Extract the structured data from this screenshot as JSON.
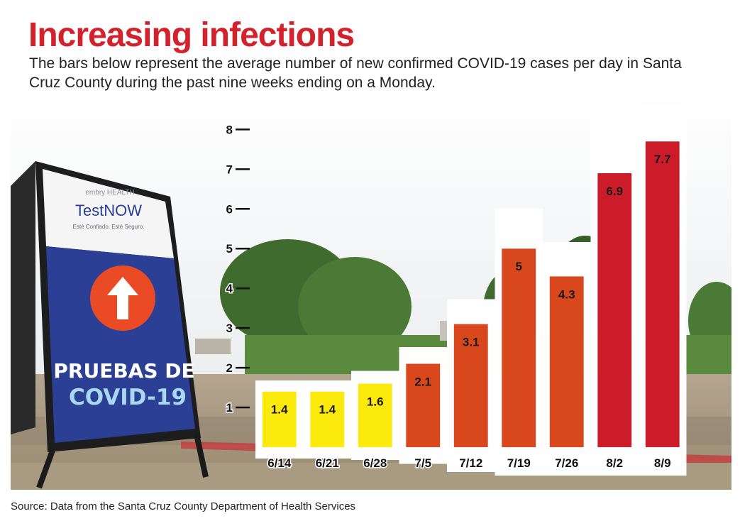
{
  "header": {
    "title": "Increasing infections",
    "subtitle": "The bars below represent the average number of new confirmed COVID-19 cases per day in Santa Cruz County during the past nine weeks ending on a Monday."
  },
  "photo": {
    "sign_brand_top": "embry HEALTH",
    "sign_brand": "TestNOW",
    "sign_tagline": "Esté Confiado. Esté Seguro.",
    "sign_line1": "PRUEBAS DE",
    "sign_line2": "COVID-19"
  },
  "chart_data": {
    "type": "bar",
    "title": "",
    "xlabel": "",
    "ylabel": "",
    "categories": [
      "6/14",
      "6/21",
      "6/28",
      "7/5",
      "7/12",
      "7/19",
      "7/26",
      "8/2",
      "8/9"
    ],
    "values": [
      1.4,
      1.4,
      1.6,
      2.1,
      3.1,
      5,
      4.3,
      6.9,
      7.7
    ],
    "value_labels": [
      "1.4",
      "1.4",
      "1.6",
      "2.1",
      "3.1",
      "5",
      "4.3",
      "6.9",
      "7.7"
    ],
    "bar_colors": [
      "#fdea07",
      "#fdea07",
      "#fdea07",
      "#d9471a",
      "#d9471a",
      "#d9471a",
      "#d9471a",
      "#cc1f2a",
      "#cc1f2a"
    ],
    "ylim": [
      0,
      8.4
    ],
    "yticks": [
      1,
      2,
      3,
      4,
      5,
      6,
      7,
      8
    ],
    "grid": false,
    "legend": "none"
  },
  "colors": {
    "title": "#d4222d",
    "axis": "#111111"
  },
  "footer": {
    "source": "Source: Data from the Santa Cruz County Department of Health Services"
  }
}
